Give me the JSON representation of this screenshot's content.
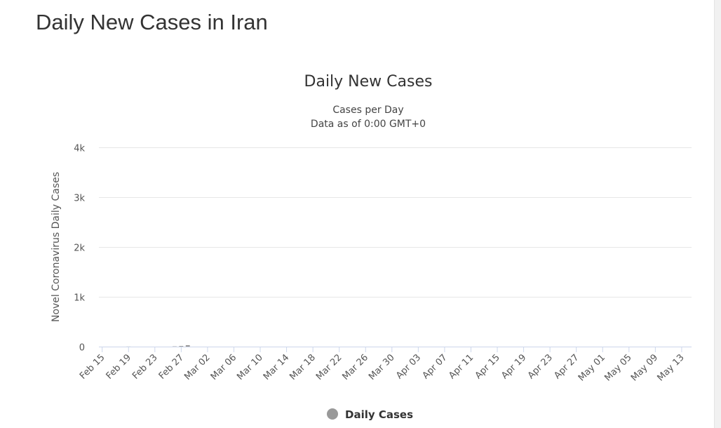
{
  "page": {
    "title": "Daily New Cases in Iran"
  },
  "colors": {
    "bar": "#999999",
    "gridline": "#e6e6e6",
    "axis": "#ccd6eb"
  },
  "chart_data": {
    "type": "bar",
    "title": "Daily New Cases",
    "subtitle_lines": [
      "Cases per Day",
      "Data as of 0:00 GMT+0"
    ],
    "ylabel": "Novel Coronavirus Daily Cases",
    "xlabel": "",
    "ylim": [
      0,
      4000
    ],
    "y_ticks": [
      {
        "value": 0,
        "label": "0"
      },
      {
        "value": 1000,
        "label": "1k"
      },
      {
        "value": 2000,
        "label": "2k"
      },
      {
        "value": 3000,
        "label": "3k"
      },
      {
        "value": 4000,
        "label": "4k"
      }
    ],
    "categories": [
      "Feb 15",
      "Feb 16",
      "Feb 17",
      "Feb 18",
      "Feb 19",
      "Feb 20",
      "Feb 21",
      "Feb 22",
      "Feb 23",
      "Feb 24",
      "Feb 25",
      "Feb 26",
      "Feb 27",
      "Feb 28",
      "Feb 29",
      "Mar 01",
      "Mar 02",
      "Mar 03",
      "Mar 04",
      "Mar 05",
      "Mar 06",
      "Mar 07",
      "Mar 08",
      "Mar 09",
      "Mar 10",
      "Mar 11",
      "Mar 12",
      "Mar 13",
      "Mar 14",
      "Mar 15",
      "Mar 16",
      "Mar 17",
      "Mar 18",
      "Mar 19",
      "Mar 20",
      "Mar 21",
      "Mar 22",
      "Mar 23",
      "Mar 24",
      "Mar 25",
      "Mar 26",
      "Mar 27",
      "Mar 28",
      "Mar 29",
      "Mar 30",
      "Mar 31",
      "Apr 01",
      "Apr 02",
      "Apr 03",
      "Apr 04",
      "Apr 05",
      "Apr 06",
      "Apr 07",
      "Apr 08",
      "Apr 09",
      "Apr 10",
      "Apr 11",
      "Apr 12",
      "Apr 13",
      "Apr 14",
      "Apr 15",
      "Apr 16",
      "Apr 17",
      "Apr 18",
      "Apr 19",
      "Apr 20",
      "Apr 21",
      "Apr 22",
      "Apr 23",
      "Apr 24",
      "Apr 25",
      "Apr 26",
      "Apr 27",
      "Apr 28",
      "Apr 29",
      "Apr 30",
      "May 01",
      "May 02",
      "May 03",
      "May 04",
      "May 05",
      "May 06",
      "May 07",
      "May 08",
      "May 09",
      "May 10",
      "May 11",
      "May 12",
      "May 13",
      "May 14"
    ],
    "x_tick_labels": [
      "Feb 15",
      "Feb 19",
      "Feb 23",
      "Feb 27",
      "Mar 02",
      "Mar 06",
      "Mar 10",
      "Mar 14",
      "Mar 18",
      "Mar 22",
      "Mar 26",
      "Mar 30",
      "Apr 03",
      "Apr 07",
      "Apr 11",
      "Apr 15",
      "Apr 19",
      "Apr 23",
      "Apr 27",
      "May 01",
      "May 05",
      "May 09",
      "May 13"
    ],
    "series": [
      {
        "name": "Daily Cases",
        "values": [
          0,
          0,
          0,
          0,
          2,
          0,
          0,
          0,
          0,
          0,
          0,
          5,
          13,
          29,
          0,
          0,
          0,
          0,
          0,
          0,
          0,
          0,
          0,
          0,
          0,
          0,
          0,
          0,
          0,
          0,
          0,
          0,
          0,
          0,
          0,
          0,
          0,
          0,
          0,
          0,
          0,
          0,
          0,
          0,
          0,
          0,
          0,
          0,
          0,
          0,
          0,
          0,
          0,
          0,
          0,
          0,
          0,
          0,
          0,
          0,
          0,
          0,
          0,
          0,
          0,
          0,
          0,
          0,
          0,
          0,
          0,
          0,
          0,
          0,
          0,
          0,
          0,
          0,
          0,
          0,
          0,
          0,
          0,
          0,
          0,
          0,
          0,
          0,
          0,
          0
        ]
      }
    ],
    "legend": {
      "label": "Daily Cases",
      "position": "bottom-center"
    }
  }
}
